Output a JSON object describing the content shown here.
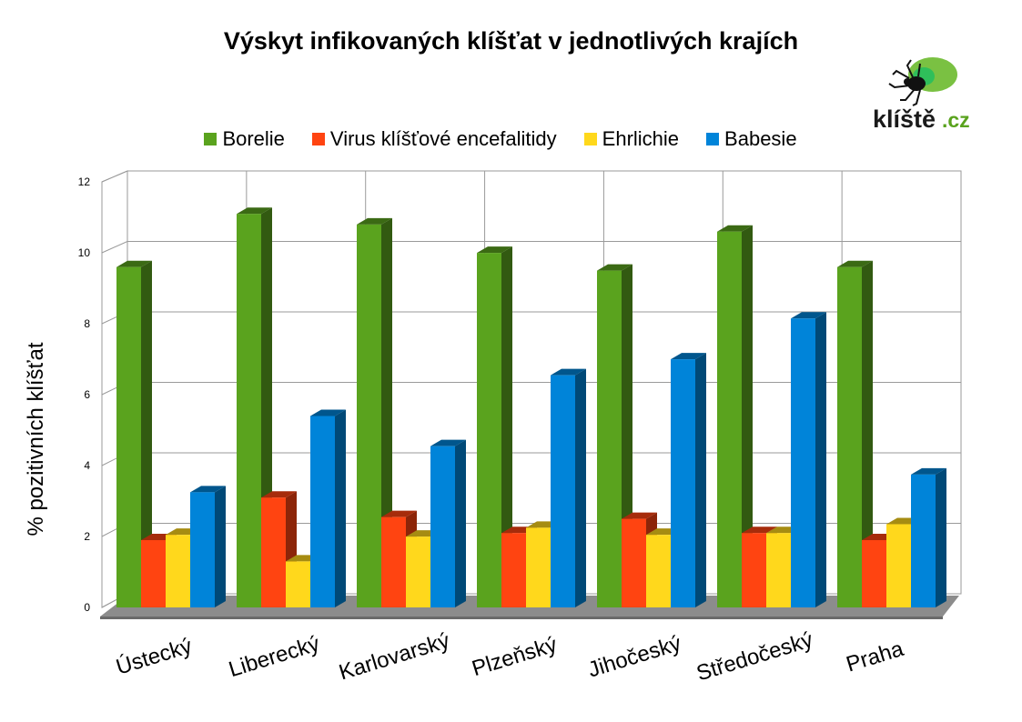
{
  "chart_data": {
    "type": "bar",
    "title": "Výskyt infikovaných klíšťat v jednotlivých krajích",
    "xlabel": "",
    "ylabel": "% pozitivních klíšťat",
    "ylim": [
      0,
      12
    ],
    "yticks": [
      "0",
      "2",
      "4",
      "6",
      "8",
      "10",
      "12"
    ],
    "grid": true,
    "legend_position": "top",
    "categories": [
      "Ústecký",
      "Liberecký",
      "Karlovarský",
      "Plzeňský",
      "Jihočeský",
      "Středočeský",
      "Praha"
    ],
    "series": [
      {
        "name": "Borelie",
        "color": "#5aa31e",
        "values": [
          9.7,
          11.2,
          10.9,
          10.1,
          9.6,
          10.7,
          9.7
        ]
      },
      {
        "name": "Virus klíšťové encefalitidy",
        "color": "#ff4411",
        "values": [
          2.0,
          3.2,
          2.65,
          2.2,
          2.6,
          2.2,
          2.0
        ]
      },
      {
        "name": "Ehrlichie",
        "color": "#ffd81c",
        "values": [
          2.15,
          1.4,
          2.1,
          2.35,
          2.15,
          2.2,
          2.45
        ]
      },
      {
        "name": "Babesie",
        "color": "#0084d9",
        "values": [
          3.35,
          5.5,
          4.65,
          6.65,
          7.1,
          8.25,
          3.85
        ]
      }
    ]
  },
  "logo": {
    "text_main": "klíště",
    "text_suffix": ".cz",
    "icon": "tick-icon",
    "colors": {
      "leaf": "#7ac142",
      "text": "#1a1a1a",
      "suffix": "#5aa31e"
    }
  }
}
